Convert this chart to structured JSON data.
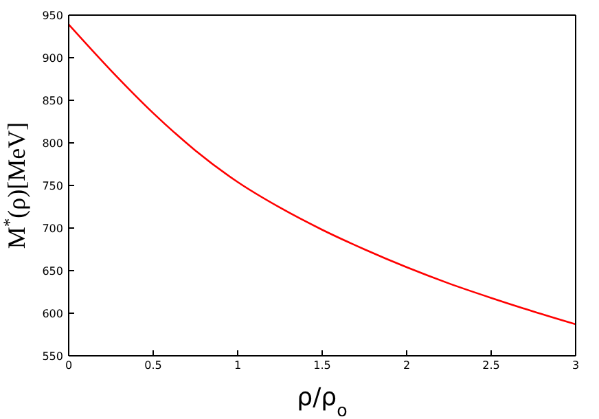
{
  "chart_data": {
    "type": "line",
    "xlabel": "ρ/ρ$_{o}$",
    "ylabel": "M$^{*}$(ρ)[MeV]",
    "x": [
      0,
      0.25,
      0.5,
      0.75,
      1,
      1.25,
      1.5,
      1.75,
      2,
      2.25,
      2.5,
      2.75,
      3
    ],
    "series": [
      {
        "color": "#ff0000",
        "values": [
          939,
          885,
          835,
          791,
          754,
          724,
          698,
          675,
          654,
          635,
          618,
          602,
          587
        ]
      }
    ],
    "xlim": [
      0,
      3
    ],
    "xticks": [
      0,
      0.5,
      1,
      1.5,
      2,
      2.5,
      3
    ],
    "ylim": [
      550,
      950
    ],
    "yticks": [
      550,
      600,
      650,
      700,
      750,
      800,
      850,
      900,
      950
    ],
    "marker": "none",
    "line_style": "solid"
  }
}
